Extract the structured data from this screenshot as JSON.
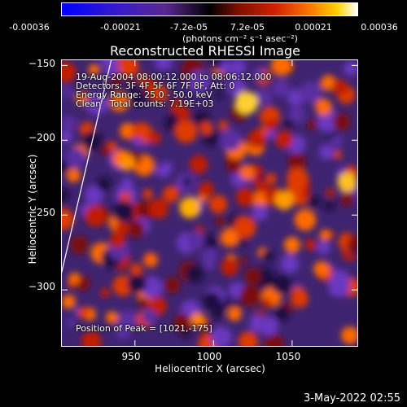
{
  "colorbar": {
    "ticks": [
      "-0.00036",
      "-0.00021",
      "-7.2e-05",
      "7.2e-05",
      "0.00021",
      "0.00036"
    ],
    "unit": "(photons cm⁻² s⁻¹ asec⁻²)",
    "range": [
      -0.00036,
      0.00036
    ]
  },
  "chart_data": {
    "type": "heatmap",
    "title": "Reconstructed RHESSI Image",
    "xlabel": "Heliocentric X (arcsec)",
    "ylabel": "Heliocentric Y (arcsec)",
    "xlim": [
      903,
      1092
    ],
    "ylim": [
      -338,
      -146
    ],
    "xticks": [
      "950",
      "1000",
      "1050"
    ],
    "xtick_values": [
      950,
      1000,
      1050
    ],
    "yticks": [
      "−150",
      "−200",
      "−250",
      "−300"
    ],
    "ytick_values": [
      -150,
      -200,
      -250,
      -300
    ],
    "info_lines": [
      "19-Aug-2004 08:00:12.000 to 08:06:12.000",
      "Detectors: 3F 4F 5F 6F 7F 8F, Att: 0",
      "Energy Range: 25.0 - 50.0 keV",
      "Clean   Total counts: 7.19E+03"
    ],
    "peak_text": "Position of Peak = [1021,-175]",
    "peak": [
      1021,
      -175
    ],
    "limb_line": [
      [
        903,
        -290
      ],
      [
        935,
        -146
      ]
    ]
  },
  "timestamp": "3-May-2022 02:55"
}
